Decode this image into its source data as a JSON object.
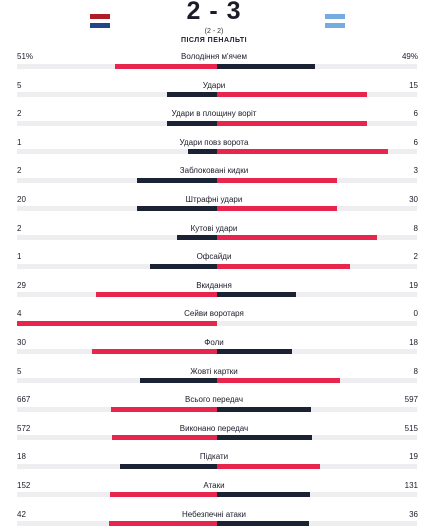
{
  "match": {
    "score": "2 - 3",
    "penalty_score": "(2 - 2)",
    "penalty_label": "ПІСЛЯ ПЕНАЛЬТІ",
    "home_flag": [
      "#ae1c28",
      "#ffffff",
      "#21468b"
    ],
    "away_flag": [
      "#74acdf",
      "#ffffff",
      "#74acdf"
    ]
  },
  "colors": {
    "leader": "#e8264d",
    "trailer": "#1b2233",
    "track": "#eeeef0"
  },
  "stats": [
    {
      "name": "Володіння м'ячем",
      "home": "51%",
      "away": "49%",
      "home_value": 51,
      "away_value": 49
    },
    {
      "name": "Удари",
      "home": "5",
      "away": "15",
      "home_value": 5,
      "away_value": 15
    },
    {
      "name": "Удари в площину воріт",
      "home": "2",
      "away": "6",
      "home_value": 2,
      "away_value": 6
    },
    {
      "name": "Удари повз ворота",
      "home": "1",
      "away": "6",
      "home_value": 1,
      "away_value": 6
    },
    {
      "name": "Заблоковані кидки",
      "home": "2",
      "away": "3",
      "home_value": 2,
      "away_value": 3
    },
    {
      "name": "Штрафні удари",
      "home": "20",
      "away": "30",
      "home_value": 20,
      "away_value": 30
    },
    {
      "name": "Кутові удари",
      "home": "2",
      "away": "8",
      "home_value": 2,
      "away_value": 8
    },
    {
      "name": "Офсайди",
      "home": "1",
      "away": "2",
      "home_value": 1,
      "away_value": 2
    },
    {
      "name": "Вкидання",
      "home": "29",
      "away": "19",
      "home_value": 29,
      "away_value": 19
    },
    {
      "name": "Сейви воротаря",
      "home": "4",
      "away": "0",
      "home_value": 4,
      "away_value": 0
    },
    {
      "name": "Фоли",
      "home": "30",
      "away": "18",
      "home_value": 30,
      "away_value": 18
    },
    {
      "name": "Жовті картки",
      "home": "5",
      "away": "8",
      "home_value": 5,
      "away_value": 8
    },
    {
      "name": "Всього передач",
      "home": "667",
      "away": "597",
      "home_value": 667,
      "away_value": 597
    },
    {
      "name": "Виконано передач",
      "home": "572",
      "away": "515",
      "home_value": 572,
      "away_value": 515
    },
    {
      "name": "Підкати",
      "home": "18",
      "away": "19",
      "home_value": 18,
      "away_value": 19
    },
    {
      "name": "Атаки",
      "home": "152",
      "away": "131",
      "home_value": 152,
      "away_value": 131
    },
    {
      "name": "Небезпечні атаки",
      "home": "42",
      "away": "36",
      "home_value": 42,
      "away_value": 36
    }
  ]
}
